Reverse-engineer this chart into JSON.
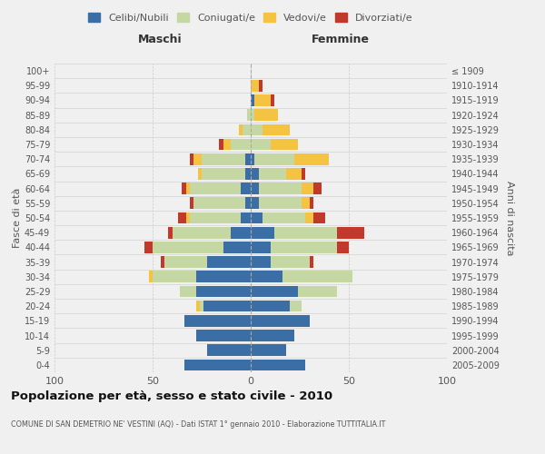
{
  "age_groups_bottom_to_top": [
    "0-4",
    "5-9",
    "10-14",
    "15-19",
    "20-24",
    "25-29",
    "30-34",
    "35-39",
    "40-44",
    "45-49",
    "50-54",
    "55-59",
    "60-64",
    "65-69",
    "70-74",
    "75-79",
    "80-84",
    "85-89",
    "90-94",
    "95-99",
    "100+"
  ],
  "birth_years_bottom_to_top": [
    "2005-2009",
    "2000-2004",
    "1995-1999",
    "1990-1994",
    "1985-1989",
    "1980-1984",
    "1975-1979",
    "1970-1974",
    "1965-1969",
    "1960-1964",
    "1955-1959",
    "1950-1954",
    "1945-1949",
    "1940-1944",
    "1935-1939",
    "1930-1934",
    "1925-1929",
    "1920-1924",
    "1915-1919",
    "1910-1914",
    "≤ 1909"
  ],
  "males_bottom_to_top": {
    "celibe": [
      34,
      22,
      28,
      34,
      24,
      28,
      28,
      22,
      14,
      10,
      5,
      3,
      5,
      3,
      3,
      0,
      0,
      0,
      0,
      0,
      0
    ],
    "coniugato": [
      0,
      0,
      0,
      0,
      2,
      8,
      22,
      22,
      36,
      30,
      26,
      26,
      26,
      22,
      22,
      10,
      4,
      2,
      0,
      0,
      0
    ],
    "vedovo": [
      0,
      0,
      0,
      0,
      2,
      0,
      2,
      0,
      0,
      0,
      2,
      0,
      2,
      2,
      4,
      4,
      2,
      0,
      0,
      0,
      0
    ],
    "divorziato": [
      0,
      0,
      0,
      0,
      0,
      0,
      0,
      2,
      4,
      2,
      4,
      2,
      2,
      0,
      2,
      2,
      0,
      0,
      0,
      0,
      0
    ]
  },
  "females_bottom_to_top": {
    "nubile": [
      28,
      18,
      22,
      30,
      20,
      24,
      16,
      10,
      10,
      12,
      6,
      4,
      4,
      4,
      2,
      0,
      0,
      0,
      2,
      0,
      0
    ],
    "coniugata": [
      0,
      0,
      0,
      0,
      6,
      20,
      36,
      20,
      34,
      32,
      22,
      22,
      22,
      14,
      20,
      10,
      6,
      2,
      0,
      0,
      0
    ],
    "vedova": [
      0,
      0,
      0,
      0,
      0,
      0,
      0,
      0,
      0,
      0,
      4,
      4,
      6,
      8,
      18,
      14,
      14,
      12,
      8,
      4,
      0
    ],
    "divorziata": [
      0,
      0,
      0,
      0,
      0,
      0,
      0,
      2,
      6,
      14,
      6,
      2,
      4,
      2,
      0,
      0,
      0,
      0,
      2,
      2,
      0
    ]
  },
  "colors": {
    "celibe": "#3A6EA5",
    "coniugato": "#C5D8A4",
    "vedovo": "#F5C342",
    "divorziato": "#C0392B"
  },
  "xlim": 100,
  "title": "Popolazione per età, sesso e stato civile - 2010",
  "subtitle": "COMUNE DI SAN DEMETRIO NE' VESTINI (AQ) - Dati ISTAT 1° gennaio 2010 - Elaborazione TUTTITALIA.IT",
  "xlabel_left": "Maschi",
  "xlabel_right": "Femmine",
  "ylabel_left": "Fasce di età",
  "ylabel_right": "Anni di nascita",
  "legend_labels": [
    "Celibi/Nubili",
    "Coniugati/e",
    "Vedovi/e",
    "Divorziati/e"
  ],
  "background_color": "#f0f0f0"
}
